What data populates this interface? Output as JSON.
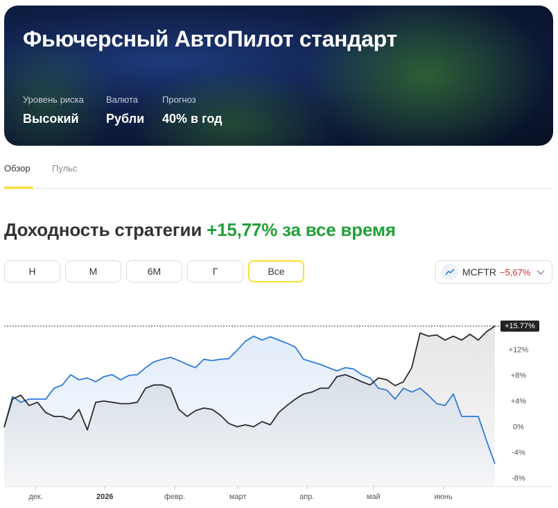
{
  "header": {
    "title": "Фьючерсный АвтоПилот стандарт",
    "stats": [
      {
        "label": "Уровень риска",
        "value": "Высокий"
      },
      {
        "label": "Валюта",
        "value": "Рубли"
      },
      {
        "label": "Прогноз",
        "value": "40% в год"
      }
    ]
  },
  "tabs": [
    "Обзор",
    "Пульс"
  ],
  "heading": {
    "text": "Доходность стратегии",
    "return": "+15,77% за все время"
  },
  "periods": [
    "Н",
    "М",
    "6М",
    "Г",
    "Все"
  ],
  "benchmark": {
    "name": "MCFTR",
    "value": "−5,67%"
  },
  "chart_data": {
    "type": "line",
    "xlim": [
      0,
      59
    ],
    "xticks": [
      {
        "value": 3.8,
        "label": "дек."
      },
      {
        "value": 12.1,
        "label": "2026"
      },
      {
        "value": 20.5,
        "label": "февр."
      },
      {
        "value": 28.1,
        "label": "март"
      },
      {
        "value": 36.4,
        "label": "апр."
      },
      {
        "value": 44.4,
        "label": "май"
      },
      {
        "value": 52.8,
        "label": "июнь"
      }
    ],
    "ylim": [
      -9.1,
      19
    ],
    "yticks": [
      {
        "value": 12,
        "label": "+12%"
      },
      {
        "value": 8,
        "label": "+8%"
      },
      {
        "value": 4,
        "label": "+4%"
      },
      {
        "value": 0,
        "label": "0%"
      },
      {
        "value": -4,
        "label": "-4%"
      },
      {
        "value": -8,
        "label": "-8%"
      }
    ],
    "series": [
      {
        "color": "#2f7bd8",
        "values": [
          0,
          4.8,
          3.9,
          4.4,
          4.4,
          4.4,
          6.1,
          6.6,
          8.2,
          7.4,
          7.7,
          7.1,
          7.9,
          8.2,
          7.4,
          8.1,
          8.2,
          9.3,
          10.2,
          10.6,
          10.9,
          10.4,
          9.8,
          9.3,
          10.6,
          10.4,
          10.6,
          10.7,
          12.0,
          13.4,
          14.2,
          13.6,
          14.1,
          13.6,
          13.1,
          12.5,
          10.6,
          10.2,
          9.8,
          9.3,
          8.8,
          9.3,
          9.1,
          8.2,
          7.7,
          6.1,
          5.8,
          4.4,
          6.1,
          5.5,
          6.1,
          5.0,
          3.7,
          3.4,
          5.2,
          1.7,
          1.7,
          1.7,
          -2.1,
          -5.67
        ]
      },
      {
        "color": "#2b2b2b",
        "values": [
          0,
          4.4,
          5,
          3.4,
          3.9,
          2.3,
          1.7,
          1.7,
          1.2,
          2.8,
          -0.4,
          3.9,
          4.1,
          3.9,
          3.7,
          3.7,
          3.9,
          6.1,
          6.6,
          6.6,
          6.1,
          2.8,
          1.7,
          2.6,
          3.0,
          2.8,
          1.9,
          0.6,
          0.1,
          0.4,
          0.1,
          0.9,
          0.4,
          2.3,
          3.4,
          4.4,
          5.2,
          5.5,
          6.1,
          6.1,
          7.9,
          8.2,
          7.7,
          7.1,
          6.6,
          7.7,
          7.4,
          6.5,
          7.1,
          9.3,
          14.7,
          14.2,
          14.4,
          13.6,
          14.2,
          13.6,
          14.5,
          13.6,
          14.9,
          15.77
        ],
        "value_labels": [
          null,
          null,
          null,
          null,
          null,
          null,
          null,
          null,
          null,
          null,
          null,
          null,
          null,
          null,
          null,
          null,
          null,
          null,
          null,
          null,
          null,
          null,
          null,
          null,
          null,
          null,
          null,
          null,
          null,
          null,
          null,
          null,
          null,
          null,
          null,
          null,
          null,
          null,
          null,
          null,
          null,
          null,
          null,
          null,
          null,
          null,
          null,
          null,
          null,
          null,
          null,
          null,
          null,
          null,
          null,
          null,
          null,
          null,
          null,
          "+15.77%"
        ]
      }
    ]
  }
}
